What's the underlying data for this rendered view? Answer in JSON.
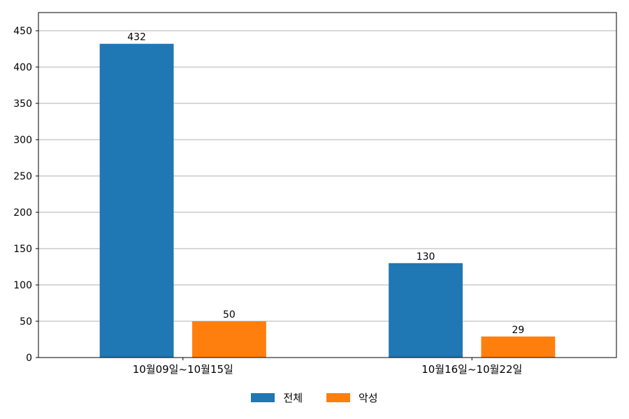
{
  "chart_data": {
    "type": "bar",
    "categories": [
      "10월09일~10월15일",
      "10월16일~10월22일"
    ],
    "series": [
      {
        "name": "전체",
        "values": [
          432,
          130
        ],
        "color": "#1f77b4"
      },
      {
        "name": "악성",
        "values": [
          50,
          29
        ],
        "color": "#ff7f0e"
      }
    ],
    "ylim": [
      0,
      475
    ],
    "yticks": [
      0,
      50,
      100,
      150,
      200,
      250,
      300,
      350,
      400,
      450
    ],
    "grid": true,
    "legend_position": "bottom-center",
    "data_labels": true
  }
}
